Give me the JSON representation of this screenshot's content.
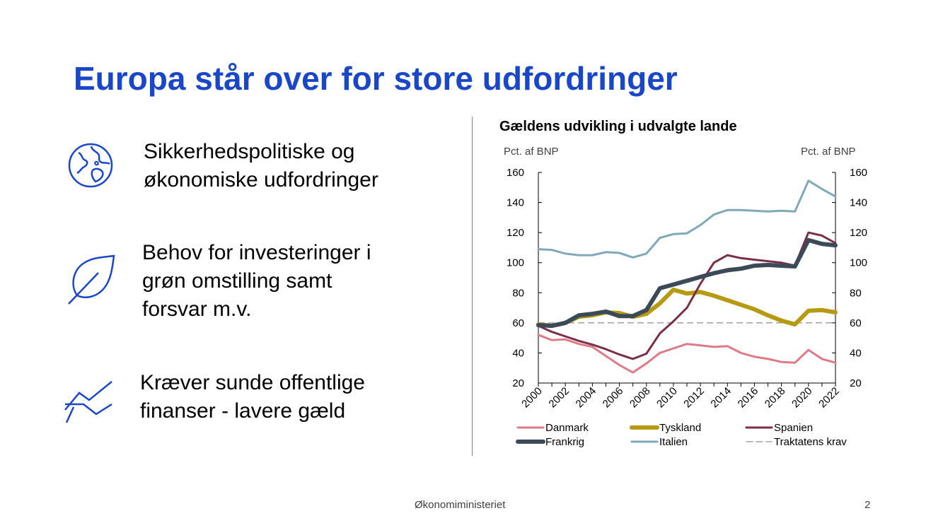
{
  "slide": {
    "title": "Europa står over for store udfordringer",
    "points": [
      {
        "icon": "globe-icon",
        "lines": [
          "Sikkerhedspolitiske og",
          "økonomiske udfordringer"
        ]
      },
      {
        "icon": "leaf-icon",
        "lines": [
          "Behov for investeringer i",
          "grøn omstilling samt",
          "forsvar m.v."
        ]
      },
      {
        "icon": "trend-chart-icon",
        "lines": [
          "Kræver sunde offentlige",
          "finanser - lavere gæld"
        ]
      }
    ],
    "footer": "Økonomiministeriet",
    "page_number": "2",
    "accent_color": "#1a47c8"
  },
  "chart_data": {
    "type": "line",
    "title": "Gældens udvikling i udvalgte lande",
    "ylabel_left": "Pct. af BNP",
    "ylabel_right": "Pct. af BNP",
    "x": [
      2000,
      2001,
      2002,
      2003,
      2004,
      2005,
      2006,
      2007,
      2008,
      2009,
      2010,
      2011,
      2012,
      2013,
      2014,
      2015,
      2016,
      2017,
      2018,
      2019,
      2020,
      2021,
      2022
    ],
    "x_ticks": [
      "2000",
      "2002",
      "2004",
      "2006",
      "2008",
      "2010",
      "2012",
      "2014",
      "2016",
      "2018",
      "2020",
      "2022"
    ],
    "ylim": [
      20,
      160
    ],
    "y_ticks": [
      "20",
      "40",
      "60",
      "80",
      "100",
      "120",
      "140",
      "160"
    ],
    "series": [
      {
        "name": "Danmark",
        "color": "#e07a88",
        "width": 3,
        "values": [
          52,
          48.5,
          49,
          46,
          44,
          38,
          32,
          27,
          33,
          40,
          43,
          46,
          45,
          44,
          44.5,
          40,
          37.5,
          36,
          34,
          33.5,
          42,
          36,
          33.5
        ]
      },
      {
        "name": "Tyskland",
        "color": "#b59a12",
        "width": 6,
        "values": [
          59,
          58,
          60,
          64,
          65,
          67,
          66.5,
          64,
          66,
          73,
          82,
          79.5,
          80.5,
          78,
          75,
          72,
          69,
          65,
          61.5,
          59,
          68,
          68.5,
          67
        ]
      },
      {
        "name": "Spanien",
        "color": "#7a2e48",
        "width": 3,
        "values": [
          58,
          54,
          51,
          48,
          45.5,
          42.5,
          39,
          36,
          39.5,
          53,
          61,
          70,
          86,
          100,
          105,
          103,
          102,
          101,
          100,
          98,
          120,
          118,
          113
        ]
      },
      {
        "name": "Frankrig",
        "color": "#3b4a56",
        "width": 6,
        "values": [
          58.5,
          58,
          60,
          65,
          66,
          67.5,
          64.5,
          64.5,
          68.5,
          83,
          85.5,
          88,
          90.5,
          93,
          95,
          96,
          98,
          98.5,
          98,
          97.5,
          115,
          112.5,
          111.5
        ]
      },
      {
        "name": "Italien",
        "color": "#7fa9b8",
        "width": 3,
        "values": [
          109,
          108.5,
          106,
          105,
          105,
          107,
          106.5,
          103.5,
          106,
          116.5,
          119,
          119.5,
          125,
          132,
          135,
          135,
          134.5,
          134,
          134.5,
          134,
          154.5,
          149,
          144
        ]
      }
    ],
    "reference_line": {
      "name": "Traktatens krav",
      "value": 60,
      "color": "#a6a6a6"
    },
    "legend_position": "bottom",
    "grid": false
  }
}
